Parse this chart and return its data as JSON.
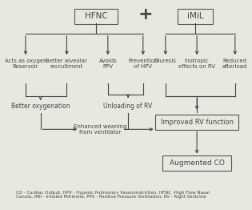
{
  "bg_color": "#e8e8e2",
  "box_color": "#e8e8e2",
  "box_edge": "#555555",
  "text_color": "#444444",
  "title_hfnc": "HFNC",
  "title_imil": "iMiL",
  "plus_sign": "+",
  "hfnc_branches": [
    "Acts as oxygen\nReservoir",
    "Better alveolar\nrecruitment",
    "Avoids\nPPV",
    "Prevention\nof HPV"
  ],
  "imil_branches": [
    "Diuresis",
    "Inotropic\neffects on RV",
    "Reduced\nafterload"
  ],
  "mid_nodes": [
    "Better oxygenation",
    "Unloading of RV"
  ],
  "weaning_node": "Enhanced weaning\nfrom ventilator",
  "improved_rv": "Improved RV function",
  "augmented_co": "Augmented CO",
  "footnote": "CO - Cardiac Output, HPV - Hypoxic Pulmonary Vasoconstriction, HFNC -High Flow Nasal\nCanula, iMil - Inhaled Milrinone, PPV - Positive Pressure Ventilation, RV - Right Ventricle"
}
